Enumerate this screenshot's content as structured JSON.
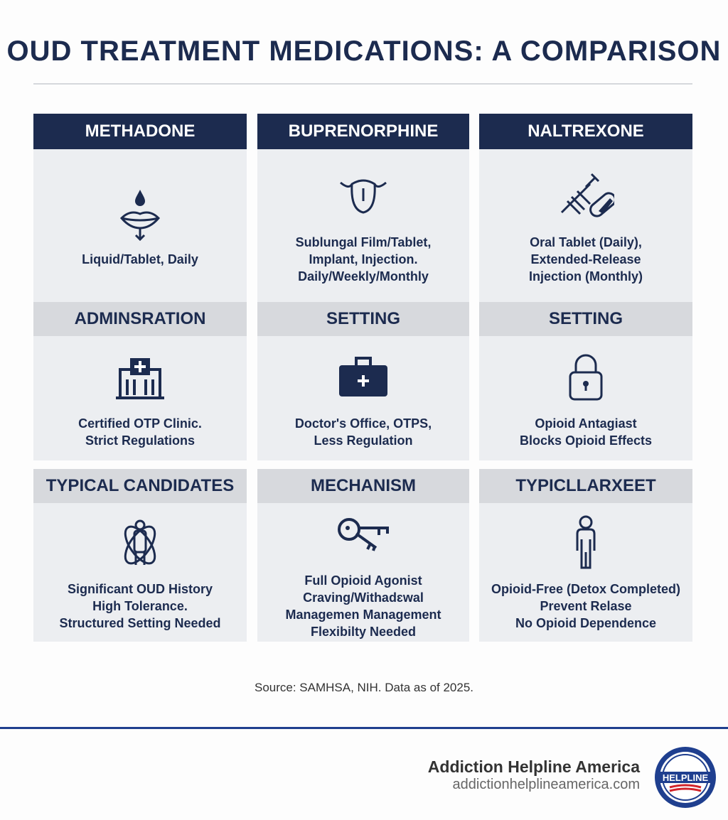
{
  "title": "OUD TREATMENT MEDICATIONS: A COMPARISON",
  "columns": [
    {
      "name": "METHADONE",
      "cells": [
        {
          "icon": "lips-drop-icon",
          "text": [
            "Liquid/Tablet, Daily"
          ]
        },
        {
          "header": "ADMINSRATION",
          "icon": "clinic-building-icon",
          "text": [
            "Certified OTP Clinic.",
            "Strict Regulations"
          ]
        },
        {
          "header": "TYPICAL CANDIDATES",
          "icon": "person-orbit-icon",
          "text": [
            "Significant OUD History",
            "High Tolerance.",
            "Structured Setting Needed"
          ]
        }
      ]
    },
    {
      "name": "BUPRENORPHINE",
      "cells": [
        {
          "icon": "tongue-icon",
          "text": [
            "Sublungal Film/Tablet,",
            "Implant, Injection.",
            "Daily/Weekly/Monthly"
          ]
        },
        {
          "header": "SETTING",
          "icon": "medical-briefcase-icon",
          "text": [
            "Doctor's Office, OTPS,",
            "Less Regulation"
          ]
        },
        {
          "header": "MECHANISM",
          "icon": "key-icon",
          "text": [
            "Full Opioid Agonist",
            "Craving/Withadɛwal",
            "Managemen Management",
            "Flexibilty Needed"
          ]
        }
      ]
    },
    {
      "name": "NALTREXONE",
      "cells": [
        {
          "icon": "syringe-pill-icon",
          "text": [
            "Oral Tablet (Daily),",
            "Extended-Release",
            "Injection (Monthly)"
          ]
        },
        {
          "header": "SETTING",
          "icon": "padlock-icon",
          "text": [
            "Opioid Antagiast",
            "Blocks Opioid Effects"
          ]
        },
        {
          "header": "TYPICLLARXEET",
          "icon": "person-icon",
          "text": [
            "Opioid-Free (Detox Completed)",
            "Prevent Relase",
            "No Opioid Dependence"
          ]
        }
      ]
    }
  ],
  "source": "Source: SAMHSA, NIH. Data as of 2025.",
  "footer": {
    "name": "Addiction Helpline America",
    "url": "addictionhelplineamerica.com",
    "logo_text": "ADDICTION HELPLINE AMERICA"
  },
  "colors": {
    "navy": "#1c2b4f",
    "grey_header": "#d7d9dd",
    "cell": "#eceef1",
    "rule_blue": "#1f3f8f"
  }
}
